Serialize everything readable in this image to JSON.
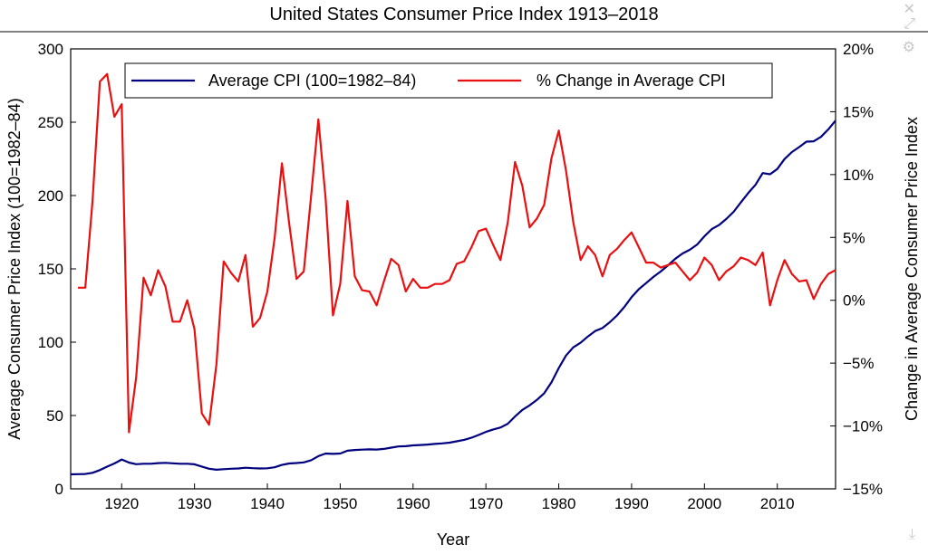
{
  "chart_data": {
    "type": "line",
    "title": "United States Consumer Price Index 1913–2018",
    "xlabel": "Year",
    "ylabel_left": "Average Consumer Price Index (100=1982–84)",
    "ylabel_right": "Change in Average Consumer Price Index",
    "xlim": [
      1913,
      2018
    ],
    "ylim_left": [
      0,
      300
    ],
    "ylim_right": [
      -15,
      20
    ],
    "x_ticks": [
      1920,
      1930,
      1940,
      1950,
      1960,
      1970,
      1980,
      1990,
      2000,
      2010
    ],
    "y_ticks_left": [
      "0",
      "50",
      "100",
      "150",
      "200",
      "250",
      "300"
    ],
    "y_ticks_right": [
      "−15%",
      "−10%",
      "−5%",
      "0%",
      "5%",
      "10%",
      "15%",
      "20%"
    ],
    "legend_position": "top",
    "grid": false,
    "series": [
      {
        "name": "Average CPI (100=1982–84)",
        "color": "#00007f",
        "axis": "left",
        "x": [
          1913,
          1914,
          1915,
          1916,
          1917,
          1918,
          1919,
          1920,
          1921,
          1922,
          1923,
          1924,
          1925,
          1926,
          1927,
          1928,
          1929,
          1930,
          1931,
          1932,
          1933,
          1934,
          1935,
          1936,
          1937,
          1938,
          1939,
          1940,
          1941,
          1942,
          1943,
          1944,
          1945,
          1946,
          1947,
          1948,
          1949,
          1950,
          1951,
          1952,
          1953,
          1954,
          1955,
          1956,
          1957,
          1958,
          1959,
          1960,
          1961,
          1962,
          1963,
          1964,
          1965,
          1966,
          1967,
          1968,
          1969,
          1970,
          1971,
          1972,
          1973,
          1974,
          1975,
          1976,
          1977,
          1978,
          1979,
          1980,
          1981,
          1982,
          1983,
          1984,
          1985,
          1986,
          1987,
          1988,
          1989,
          1990,
          1991,
          1992,
          1993,
          1994,
          1995,
          1996,
          1997,
          1998,
          1999,
          2000,
          2001,
          2002,
          2003,
          2004,
          2005,
          2006,
          2007,
          2008,
          2009,
          2010,
          2011,
          2012,
          2013,
          2014,
          2015,
          2016,
          2017,
          2018
        ],
        "y": [
          9.9,
          10.0,
          10.1,
          10.9,
          12.8,
          15.1,
          17.3,
          20.0,
          17.9,
          16.8,
          17.1,
          17.1,
          17.5,
          17.7,
          17.4,
          17.1,
          17.1,
          16.7,
          15.2,
          13.7,
          13.0,
          13.4,
          13.7,
          13.9,
          14.4,
          14.1,
          13.9,
          14.0,
          14.7,
          16.3,
          17.3,
          17.6,
          18.0,
          19.5,
          22.3,
          24.1,
          23.8,
          24.1,
          26.0,
          26.5,
          26.7,
          26.9,
          26.8,
          27.2,
          28.1,
          28.9,
          29.1,
          29.6,
          29.9,
          30.2,
          30.6,
          31.0,
          31.5,
          32.4,
          33.4,
          34.8,
          36.7,
          38.8,
          40.5,
          41.8,
          44.4,
          49.3,
          53.8,
          56.9,
          60.6,
          65.2,
          72.6,
          82.4,
          90.9,
          96.5,
          99.6,
          103.9,
          107.6,
          109.6,
          113.6,
          118.3,
          124.0,
          130.7,
          136.2,
          140.3,
          144.5,
          148.2,
          152.4,
          156.9,
          160.5,
          163.0,
          166.6,
          172.2,
          177.1,
          179.9,
          184.0,
          188.9,
          195.3,
          201.6,
          207.3,
          215.3,
          214.5,
          218.1,
          224.9,
          229.6,
          233.0,
          236.7,
          237.0,
          240.0,
          245.1,
          251.1
        ]
      },
      {
        "name": "% Change in Average CPI",
        "color": "#e81010",
        "axis": "right",
        "x": [
          1914,
          1915,
          1916,
          1917,
          1918,
          1919,
          1920,
          1921,
          1922,
          1923,
          1924,
          1925,
          1926,
          1927,
          1928,
          1929,
          1930,
          1931,
          1932,
          1933,
          1934,
          1935,
          1936,
          1937,
          1938,
          1939,
          1940,
          1941,
          1942,
          1943,
          1944,
          1945,
          1946,
          1947,
          1948,
          1949,
          1950,
          1951,
          1952,
          1953,
          1954,
          1955,
          1956,
          1957,
          1958,
          1959,
          1960,
          1961,
          1962,
          1963,
          1964,
          1965,
          1966,
          1967,
          1968,
          1969,
          1970,
          1971,
          1972,
          1973,
          1974,
          1975,
          1976,
          1977,
          1978,
          1979,
          1980,
          1981,
          1982,
          1983,
          1984,
          1985,
          1986,
          1987,
          1988,
          1989,
          1990,
          1991,
          1992,
          1993,
          1994,
          1995,
          1996,
          1997,
          1998,
          1999,
          2000,
          2001,
          2002,
          2003,
          2004,
          2005,
          2006,
          2007,
          2008,
          2009,
          2010,
          2011,
          2012,
          2013,
          2014,
          2015,
          2016,
          2017,
          2018
        ],
        "y": [
          1.0,
          1.0,
          7.9,
          17.4,
          18.0,
          14.6,
          15.6,
          -10.5,
          -6.1,
          1.8,
          0.4,
          2.4,
          1.1,
          -1.7,
          -1.7,
          0.0,
          -2.3,
          -9.0,
          -9.9,
          -5.1,
          3.1,
          2.2,
          1.5,
          3.6,
          -2.1,
          -1.4,
          0.7,
          5.0,
          10.9,
          6.1,
          1.7,
          2.3,
          8.3,
          14.4,
          8.1,
          -1.2,
          1.3,
          7.9,
          1.9,
          0.8,
          0.7,
          -0.4,
          1.5,
          3.3,
          2.8,
          0.7,
          1.7,
          1.0,
          1.0,
          1.3,
          1.3,
          1.6,
          2.9,
          3.1,
          4.2,
          5.5,
          5.7,
          4.4,
          3.2,
          6.2,
          11.0,
          9.1,
          5.8,
          6.5,
          7.6,
          11.3,
          13.5,
          10.3,
          6.2,
          3.2,
          4.3,
          3.6,
          1.9,
          3.6,
          4.1,
          4.8,
          5.4,
          4.2,
          3.0,
          3.0,
          2.6,
          2.8,
          3.0,
          2.3,
          1.6,
          2.2,
          3.4,
          2.8,
          1.6,
          2.3,
          2.7,
          3.4,
          3.2,
          2.8,
          3.8,
          -0.4,
          1.6,
          3.2,
          2.1,
          1.5,
          1.6,
          0.1,
          1.3,
          2.1,
          2.4
        ]
      }
    ]
  },
  "toolbar_icons": [
    "close-icon",
    "expand-icon",
    "gear-icon",
    "download-icon"
  ]
}
